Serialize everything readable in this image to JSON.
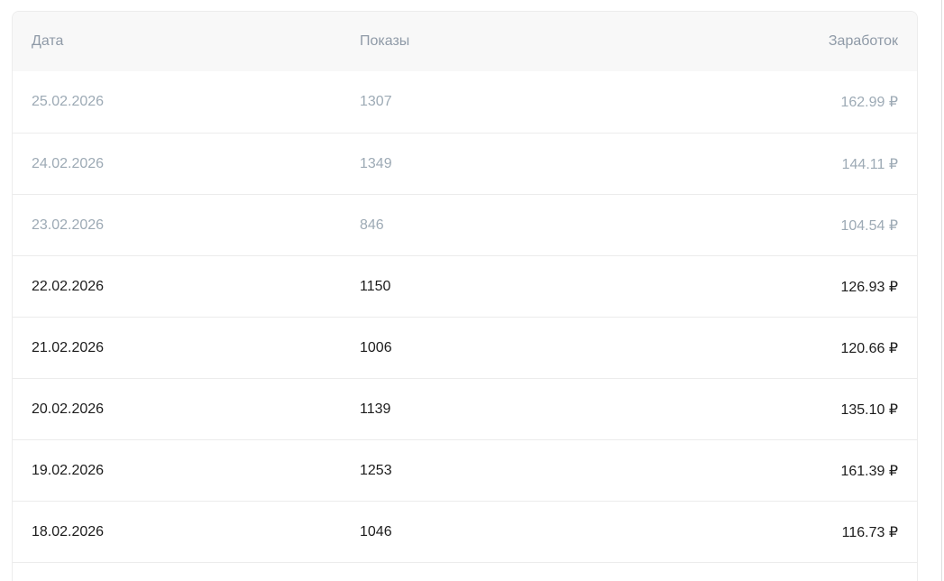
{
  "table": {
    "columns": [
      {
        "key": "date",
        "label": "Дата"
      },
      {
        "key": "impressions",
        "label": "Показы"
      },
      {
        "key": "earnings",
        "label": "Заработок"
      }
    ],
    "rows": [
      {
        "date": "25.02.2026",
        "impressions": "1307",
        "earnings": "162.99 ₽",
        "faded": true
      },
      {
        "date": "24.02.2026",
        "impressions": "1349",
        "earnings": "144.11 ₽",
        "faded": true
      },
      {
        "date": "23.02.2026",
        "impressions": "846",
        "earnings": "104.54 ₽",
        "faded": true
      },
      {
        "date": "22.02.2026",
        "impressions": "1150",
        "earnings": "126.93 ₽",
        "faded": false
      },
      {
        "date": "21.02.2026",
        "impressions": "1006",
        "earnings": "120.66 ₽",
        "faded": false
      },
      {
        "date": "20.02.2026",
        "impressions": "1139",
        "earnings": "135.10 ₽",
        "faded": false
      },
      {
        "date": "19.02.2026",
        "impressions": "1253",
        "earnings": "161.39 ₽",
        "faded": false
      },
      {
        "date": "18.02.2026",
        "impressions": "1046",
        "earnings": "116.73 ₽",
        "faded": false
      }
    ],
    "currency_symbol": "₽"
  },
  "colors": {
    "header_bg": "#f8f8f8",
    "header_text": "#8f9aa7",
    "row_text": "#1c1c1c",
    "faded_row_text": "#9daab5",
    "border": "#ececec",
    "page_edge_line": "#dedede",
    "background": "#ffffff"
  }
}
